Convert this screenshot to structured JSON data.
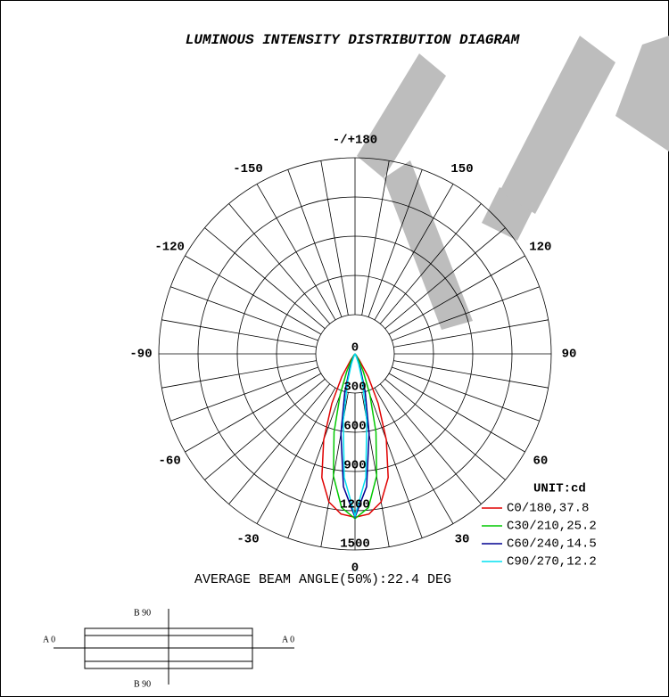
{
  "chart_data": {
    "type": "polar",
    "title": "LUMINOUS INTENSITY DISTRIBUTION DIAGRAM",
    "unit_label": "UNIT:cd",
    "annotation": "AVERAGE BEAM ANGLE(50%):22.4 DEG",
    "rlim": [
      0,
      1500
    ],
    "rticks": [
      0,
      300,
      600,
      900,
      1200,
      1500
    ],
    "thetagrid": [
      0,
      10,
      20,
      30,
      40,
      50,
      60,
      70,
      80,
      90,
      100,
      110,
      120,
      130,
      140,
      150,
      160,
      170,
      180,
      190,
      200,
      210,
      220,
      230,
      240,
      250,
      260,
      270,
      280,
      290,
      300,
      310,
      320,
      330,
      340,
      350
    ],
    "thetaticks": [
      {
        "value": 180,
        "label": "-/+180"
      },
      150,
      120,
      90,
      60,
      30,
      0,
      -30,
      -60,
      -90,
      -120,
      -150
    ],
    "theta": [
      -40,
      -35,
      -30,
      -25,
      -20,
      -15,
      -10,
      -5,
      0,
      5,
      10,
      15,
      20,
      25,
      30,
      35,
      40
    ],
    "series": [
      {
        "name": "C0/180,37.8",
        "color": "#e00000",
        "values": [
          10,
          60,
          200,
          420,
          700,
          980,
          1150,
          1230,
          1250,
          1230,
          1150,
          980,
          700,
          420,
          200,
          60,
          10
        ]
      },
      {
        "name": "C30/210,25.2",
        "color": "#00c800",
        "values": [
          0,
          15,
          60,
          150,
          330,
          620,
          950,
          1180,
          1260,
          1180,
          950,
          620,
          330,
          150,
          60,
          15,
          0
        ]
      },
      {
        "name": "C60/240,14.5",
        "color": "#000090",
        "values": [
          0,
          0,
          10,
          40,
          120,
          300,
          620,
          1020,
          1250,
          1020,
          620,
          300,
          120,
          40,
          10,
          0,
          0
        ]
      },
      {
        "name": "C90/270,12.2",
        "color": "#00e0f0",
        "values": [
          0,
          0,
          5,
          25,
          80,
          220,
          520,
          950,
          1240,
          950,
          520,
          220,
          80,
          25,
          5,
          0,
          0
        ]
      }
    ]
  },
  "diagram": {
    "top_label": "B 90",
    "bottom_label": "B 90",
    "left_label": "A 0",
    "right_label": "A 0"
  }
}
